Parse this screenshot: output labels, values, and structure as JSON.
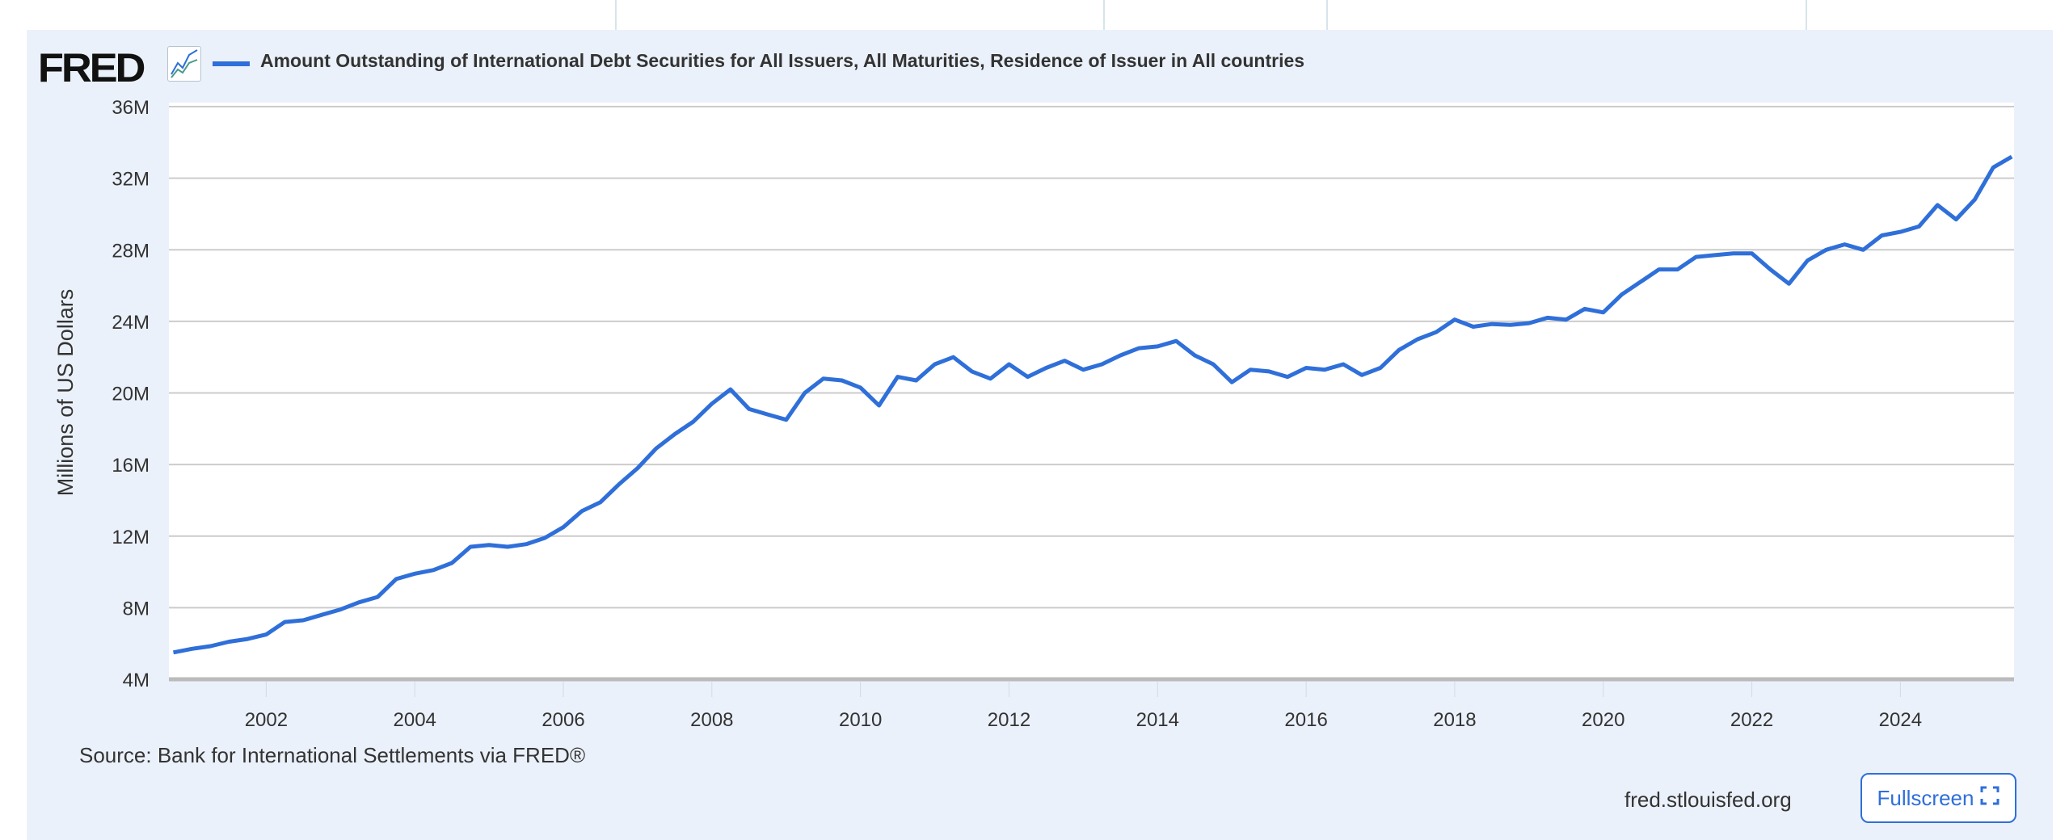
{
  "header": {
    "logo_text": "FRED",
    "legend_label": "Amount Outstanding of International Debt Securities for All Issuers, All Maturities, Residence of Issuer in All countries"
  },
  "footer": {
    "source": "Source: Bank for International Settlements via FRED®",
    "site": "fred.stlouisfed.org",
    "fullscreen_label": "Fullscreen",
    "fullscreen_icon": "expand-corners-icon"
  },
  "colors": {
    "series": "#2f6fd9",
    "panel": "#ebf1fa",
    "grid": "#cccccc"
  },
  "chart_data": {
    "type": "line",
    "title": "",
    "ylabel": "Millions of US Dollars",
    "xlabel": "",
    "ylim": [
      4,
      36
    ],
    "yticks": [
      "4M",
      "8M",
      "12M",
      "16M",
      "20M",
      "24M",
      "28M",
      "32M",
      "36M"
    ],
    "ytick_values": [
      4,
      8,
      12,
      16,
      20,
      24,
      28,
      32,
      36
    ],
    "xticks": [
      "2002",
      "2004",
      "2006",
      "2008",
      "2010",
      "2012",
      "2014",
      "2016",
      "2018",
      "2020",
      "2022",
      "2024"
    ],
    "grid": "horizontal",
    "legend": "top-left",
    "series": [
      {
        "name": "Amount Outstanding of International Debt Securities for All Issuers, All Maturities, Residence of Issuer in All countries",
        "start": "2000-10-01",
        "frequency": "quarterly",
        "values": [
          5.5,
          5.7,
          5.85,
          6.1,
          6.25,
          6.5,
          7.2,
          7.3,
          7.6,
          7.9,
          8.3,
          8.6,
          9.6,
          9.9,
          10.1,
          10.5,
          11.4,
          11.5,
          11.4,
          11.55,
          11.9,
          12.5,
          13.4,
          13.9,
          14.9,
          15.8,
          16.9,
          17.7,
          18.4,
          19.4,
          20.2,
          19.1,
          18.8,
          18.5,
          20.0,
          20.8,
          20.7,
          20.3,
          19.3,
          20.9,
          20.7,
          21.6,
          22.0,
          21.2,
          20.8,
          21.6,
          20.9,
          21.4,
          21.8,
          21.3,
          21.6,
          22.1,
          22.5,
          22.6,
          22.9,
          22.1,
          21.6,
          20.6,
          21.3,
          21.2,
          20.9,
          21.4,
          21.3,
          21.6,
          21.0,
          21.4,
          22.4,
          23.0,
          23.4,
          24.1,
          23.7,
          23.85,
          23.8,
          23.9,
          24.2,
          24.1,
          24.7,
          24.5,
          25.5,
          26.2,
          26.9,
          26.9,
          27.6,
          27.7,
          27.8,
          27.8,
          26.9,
          26.1,
          27.4,
          28.0,
          28.3,
          28.0,
          28.8,
          29.0,
          29.3,
          30.5,
          29.7,
          30.8,
          32.6,
          33.2
        ]
      }
    ]
  }
}
